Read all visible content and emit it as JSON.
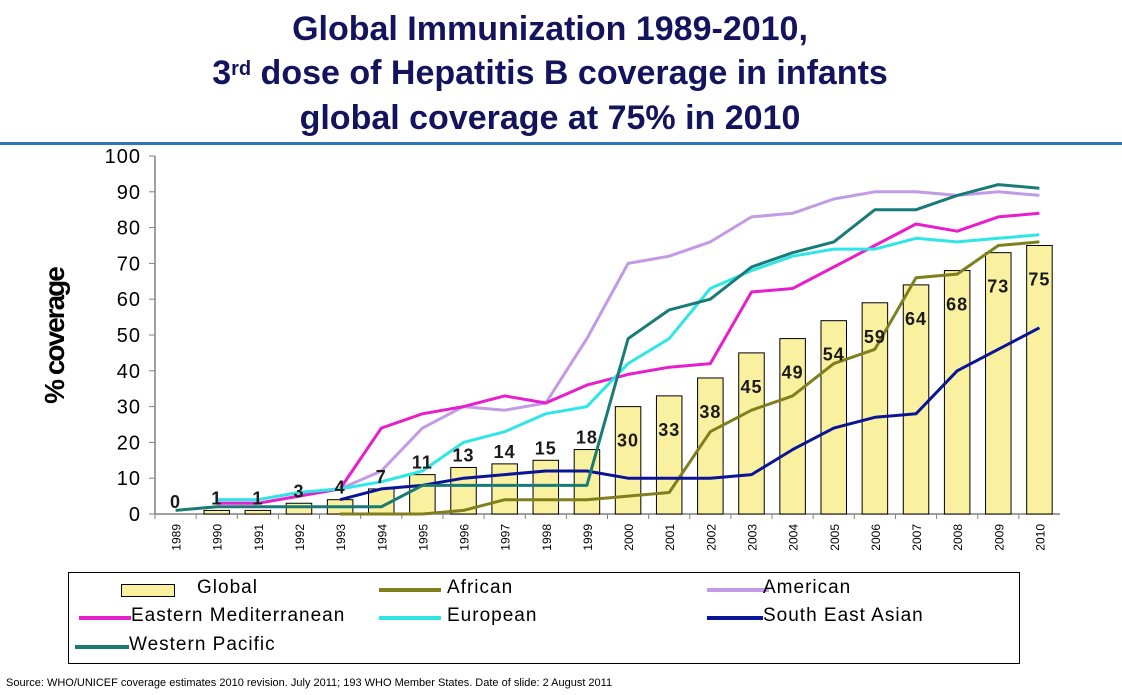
{
  "title": {
    "line1": "Global  Immunization 1989-2010,",
    "line2_pre": "3",
    "line2_sup": "rd",
    "line2_post": " dose of Hepatitis B coverage in infants",
    "line3": "global coverage at 75% in 2010"
  },
  "source": "Source: WHO/UNICEF coverage estimates 2010 revision. July 2011; 193 WHO Member States. Date of slide: 2 August 2011",
  "chart_data": {
    "type": "bar",
    "ylabel": "% coverage",
    "ylim": [
      0,
      100
    ],
    "yticks": [
      "0",
      "10",
      "20",
      "30",
      "40",
      "50",
      "60",
      "70",
      "80",
      "90",
      "100"
    ],
    "categories": [
      "1989",
      "1990",
      "1991",
      "1992",
      "1993",
      "1994",
      "1995",
      "1996",
      "1997",
      "1998",
      "1999",
      "2000",
      "2001",
      "2002",
      "2003",
      "2004",
      "2005",
      "2006",
      "2007",
      "2008",
      "2009",
      "2010"
    ],
    "bars": {
      "name": "Global",
      "color": "#f9f0a0",
      "values": [
        0,
        1,
        1,
        3,
        4,
        7,
        11,
        13,
        14,
        15,
        18,
        30,
        33,
        38,
        45,
        49,
        54,
        59,
        64,
        68,
        73,
        75
      ]
    },
    "series": [
      {
        "name": "African",
        "color": "#7f7f1e",
        "values": [
          null,
          null,
          null,
          null,
          0,
          0,
          0,
          1,
          4,
          4,
          4,
          5,
          6,
          23,
          29,
          33,
          42,
          46,
          66,
          67,
          75,
          76
        ]
      },
      {
        "name": "American",
        "color": "#c39ae6",
        "values": [
          null,
          4,
          4,
          6,
          7,
          12,
          24,
          30,
          29,
          31,
          49,
          70,
          72,
          76,
          83,
          84,
          88,
          90,
          90,
          89,
          90,
          89
        ]
      },
      {
        "name": "Eastern Mediterranean",
        "color": "#e61ecb",
        "values": [
          null,
          3,
          3,
          5,
          7,
          24,
          28,
          30,
          33,
          31,
          36,
          39,
          41,
          42,
          62,
          63,
          69,
          75,
          81,
          79,
          83,
          84
        ]
      },
      {
        "name": "European",
        "color": "#2ee6e6",
        "values": [
          null,
          4,
          4,
          6,
          7,
          9,
          12,
          20,
          23,
          28,
          30,
          42,
          49,
          63,
          68,
          72,
          74,
          74,
          77,
          76,
          77,
          78
        ]
      },
      {
        "name": "South East Asian",
        "color": "#0a1496",
        "values": [
          null,
          null,
          null,
          null,
          4,
          7,
          8,
          10,
          11,
          12,
          12,
          10,
          10,
          10,
          11,
          18,
          24,
          27,
          28,
          40,
          46,
          52
        ]
      },
      {
        "name": "Western Pacific",
        "color": "#197a76",
        "values": [
          1,
          2,
          2,
          2,
          2,
          2,
          8,
          8,
          8,
          8,
          8,
          49,
          57,
          60,
          69,
          73,
          76,
          85,
          85,
          89,
          92,
          91
        ]
      }
    ],
    "legend_position": "bottom"
  }
}
